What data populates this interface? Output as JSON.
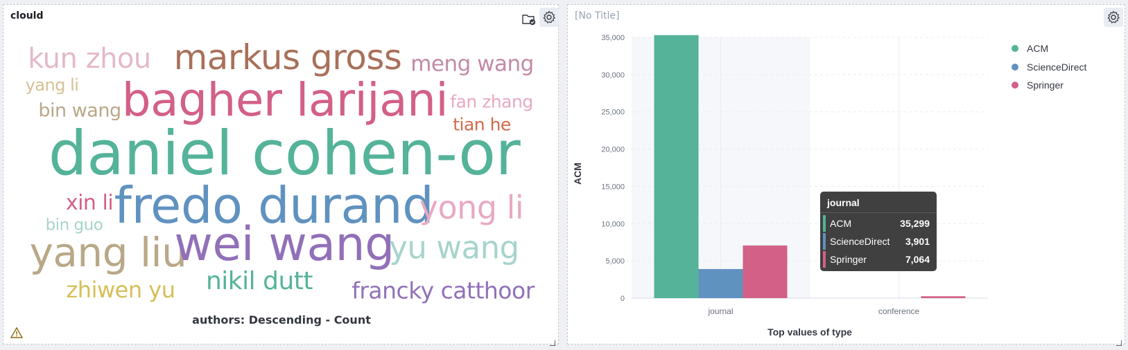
{
  "left_panel": {
    "title": "clould",
    "caption": "authors: Descending - Count",
    "icons": [
      "folder-check-icon",
      "gear-icon",
      "warning-icon",
      "resize-icon"
    ],
    "words": [
      {
        "text": "kun zhou",
        "color": "#e3b9cb"
      },
      {
        "text": "markus gross",
        "color": "#a8705a"
      },
      {
        "text": "meng wang",
        "color": "#c28aa6"
      },
      {
        "text": "yang li",
        "color": "#d5c195"
      },
      {
        "text": "bagher larijani",
        "color": "#d36086"
      },
      {
        "text": "fan zhang",
        "color": "#e8a9c2"
      },
      {
        "text": "bin wang",
        "color": "#b9a888"
      },
      {
        "text": "tian he",
        "color": "#d36a4b"
      },
      {
        "text": "daniel cohen-or",
        "color": "#54b399"
      },
      {
        "text": "xin li",
        "color": "#d36086"
      },
      {
        "text": "fredo durand",
        "color": "#6092c0"
      },
      {
        "text": "yong li",
        "color": "#e8a9c2"
      },
      {
        "text": "bin guo",
        "color": "#a6d4cc"
      },
      {
        "text": "yang liu",
        "color": "#b9a888"
      },
      {
        "text": "wei wang",
        "color": "#9170b8"
      },
      {
        "text": "yu wang",
        "color": "#a6d4cc"
      },
      {
        "text": "zhiwen yu",
        "color": "#d6bf57"
      },
      {
        "text": "nikil dutt",
        "color": "#54b399"
      },
      {
        "text": "francky catthoor",
        "color": "#9170b8"
      }
    ]
  },
  "right_panel": {
    "title": "[No Title]",
    "icons": [
      "gear-icon",
      "resize-icon"
    ],
    "tooltip": {
      "title": "journal",
      "rows": [
        {
          "label": "ACM",
          "value": "35,299",
          "color": "#54b399"
        },
        {
          "label": "ScienceDirect",
          "value": "3,901",
          "color": "#6092c0"
        },
        {
          "label": "Springer",
          "value": "7,064",
          "color": "#d36086"
        }
      ]
    }
  },
  "chart_data": {
    "type": "bar",
    "categories": [
      "journal",
      "conference"
    ],
    "series": [
      {
        "name": "ACM",
        "color": "#54b399",
        "values": [
          35299,
          0
        ]
      },
      {
        "name": "ScienceDirect",
        "color": "#6092c0",
        "values": [
          3901,
          0
        ]
      },
      {
        "name": "Springer",
        "color": "#d36086",
        "values": [
          7064,
          250
        ]
      }
    ],
    "xlabel": "Top values of type",
    "ylabel": "ACM",
    "ylim": [
      0,
      35000
    ],
    "yticks": [
      0,
      5000,
      10000,
      15000,
      20000,
      25000,
      30000,
      35000
    ],
    "ytick_labels": [
      "0",
      "5,000",
      "10,000",
      "15,000",
      "20,000",
      "25,000",
      "30,000",
      "35,000"
    ],
    "legend_position": "top-right",
    "grid": true
  }
}
